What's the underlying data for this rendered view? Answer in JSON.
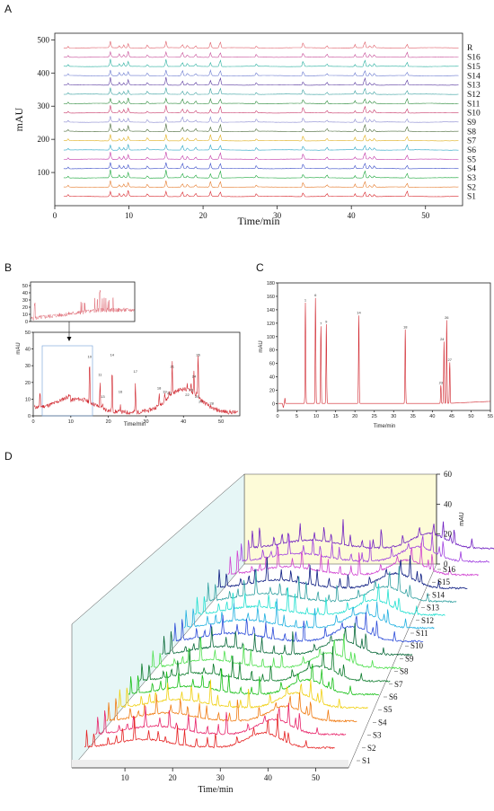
{
  "panels": {
    "A": "A",
    "B": "B",
    "C": "C",
    "D": "D"
  },
  "colors": {
    "A": [
      "#d8262c",
      "#e57a2b",
      "#1aa63a",
      "#3a4cc8",
      "#c23aa8",
      "#2aa6c4",
      "#e0b020",
      "#4a6a3a",
      "#8a8ad0",
      "#c83a6a",
      "#2a8a3a",
      "#3aa0a0",
      "#5a3aa0",
      "#6a7ad0",
      "#2ab0a0",
      "#c8509a",
      "#e0606a"
    ],
    "D": [
      "#e52222",
      "#e8246a",
      "#f07a10",
      "#f0d010",
      "#18c018",
      "#0a7a2a",
      "#50e050",
      "#0a6a3a",
      "#2a4ad8",
      "#20b0e0",
      "#20e0d0",
      "#30a0a0",
      "#0a1a80",
      "#d040d0",
      "#a040e0",
      "#7020c0"
    ]
  },
  "chart_data": [
    {
      "id": "A",
      "type": "line",
      "xlabel": "Time/min",
      "ylabel": "mAU",
      "xlim": [
        0,
        55
      ],
      "ylim": [
        0,
        520
      ],
      "xticks": [
        0,
        10,
        20,
        30,
        40,
        50
      ],
      "yticks": [
        100,
        200,
        300,
        400,
        500
      ],
      "series_names": [
        "S1",
        "S2",
        "S3",
        "S4",
        "S5",
        "S6",
        "S7",
        "S8",
        "S9",
        "S10",
        "S11",
        "S12",
        "S13",
        "S14",
        "S15",
        "S16",
        "R"
      ],
      "baseline_offset": 28,
      "peak_times": [
        7.5,
        8.7,
        9.3,
        9.9,
        12.5,
        15.0,
        17.2,
        17.9,
        19.0,
        21.0,
        22.3,
        27.2,
        33.5,
        36.7,
        40.5,
        41.8,
        42.5,
        43.1,
        47.5
      ]
    },
    {
      "id": "B",
      "type": "line",
      "xlabel": "Time/min",
      "ylabel": "mAU",
      "xlim": [
        0,
        55
      ],
      "ylim": [
        0,
        50
      ],
      "xticks": [
        0,
        10,
        20,
        30,
        40,
        50
      ],
      "yticks": [
        0,
        10,
        20,
        30,
        40,
        50
      ],
      "peak_labels": [
        {
          "label": "10",
          "x": 15.0,
          "y": 34
        },
        {
          "label": "11",
          "x": 17.8,
          "y": 23
        },
        {
          "label": "13",
          "x": 18.5,
          "y": 10
        },
        {
          "label": "14",
          "x": 21.0,
          "y": 35
        },
        {
          "label": "16",
          "x": 23.2,
          "y": 13
        },
        {
          "label": "17",
          "x": 27.2,
          "y": 25
        },
        {
          "label": "18",
          "x": 33.5,
          "y": 15
        },
        {
          "label": "19",
          "x": 35.0,
          "y": 13
        },
        {
          "label": "20",
          "x": 36.2,
          "y": 12
        },
        {
          "label": "21",
          "x": 37.0,
          "y": 28
        },
        {
          "label": "22",
          "x": 41.0,
          "y": 11
        },
        {
          "label": "23",
          "x": 42.0,
          "y": 14
        },
        {
          "label": "24",
          "x": 42.8,
          "y": 22
        },
        {
          "label": "25",
          "x": 43.6,
          "y": 10
        },
        {
          "label": "26",
          "x": 43.9,
          "y": 35
        },
        {
          "label": "27",
          "x": 44.6,
          "y": 7
        },
        {
          "label": "28",
          "x": 47.5,
          "y": 6
        }
      ]
    },
    {
      "id": "C",
      "type": "line",
      "xlabel": "Time/min",
      "ylabel": "mAU",
      "xlim": [
        0,
        55
      ],
      "ylim": [
        -10,
        180
      ],
      "xticks": [
        0,
        5,
        10,
        15,
        20,
        25,
        30,
        35,
        40,
        45,
        50,
        55
      ],
      "yticks": [
        0,
        20,
        40,
        60,
        80,
        100,
        120,
        140,
        160,
        180
      ],
      "peaks": [
        {
          "label": "1",
          "x": 7.2,
          "y": 150
        },
        {
          "label": "6",
          "x": 9.8,
          "y": 157
        },
        {
          "label": "7",
          "x": 11.2,
          "y": 115
        },
        {
          "label": "9",
          "x": 12.6,
          "y": 118
        },
        {
          "label": "14",
          "x": 21.0,
          "y": 131
        },
        {
          "label": "18",
          "x": 33.0,
          "y": 110
        },
        {
          "label": "23",
          "x": 42.2,
          "y": 27
        },
        {
          "label": "24",
          "x": 43.0,
          "y": 92
        },
        {
          "label": "26",
          "x": 43.7,
          "y": 124
        },
        {
          "label": "27",
          "x": 44.5,
          "y": 61
        }
      ]
    },
    {
      "id": "D",
      "type": "line",
      "xlabel": "Time/min",
      "zlabel": "mAU",
      "xlim": [
        0,
        55
      ],
      "zlim": [
        0,
        60
      ],
      "xticks": [
        10,
        20,
        30,
        40,
        50
      ],
      "zticks": [
        0,
        20,
        40,
        60
      ],
      "series_names": [
        "S1",
        "S2",
        "S3",
        "S4",
        "S5",
        "S6",
        "S7",
        "S8",
        "S9",
        "S10",
        "S11",
        "S12",
        "S13",
        "S14",
        "S15",
        "S16"
      ]
    }
  ]
}
